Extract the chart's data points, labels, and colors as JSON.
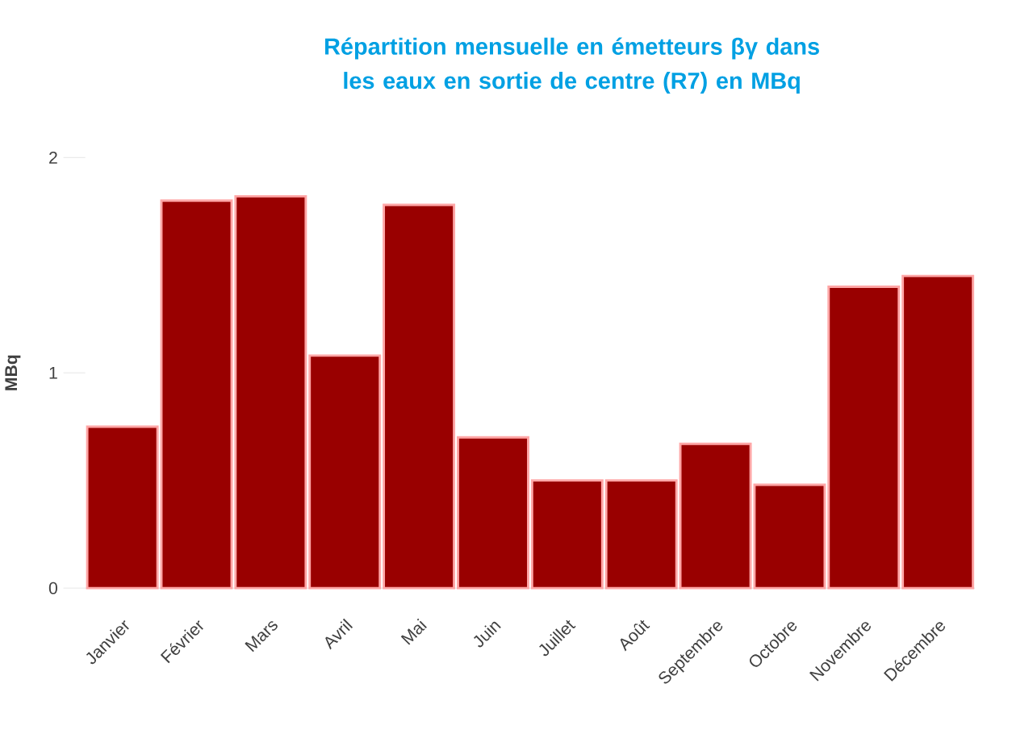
{
  "chart_data": {
    "type": "bar",
    "title": "Répartition mensuelle en émetteurs βγ  dans les eaux en sortie de centre (R7) en MBq",
    "ylabel": "MBq",
    "categories": [
      "Janvier",
      "Février",
      "Mars",
      "Avril",
      "Mai",
      "Juin",
      "Juillet",
      "Août",
      "Septembre",
      "Octobre",
      "Novembre",
      "Décembre"
    ],
    "values": [
      0.75,
      1.8,
      1.82,
      1.08,
      1.78,
      0.7,
      0.5,
      0.5,
      0.67,
      0.48,
      1.4,
      1.45
    ],
    "color": "#990000",
    "ylim": [
      0,
      2
    ],
    "yticks": [
      0,
      1,
      2
    ],
    "grid": false
  }
}
